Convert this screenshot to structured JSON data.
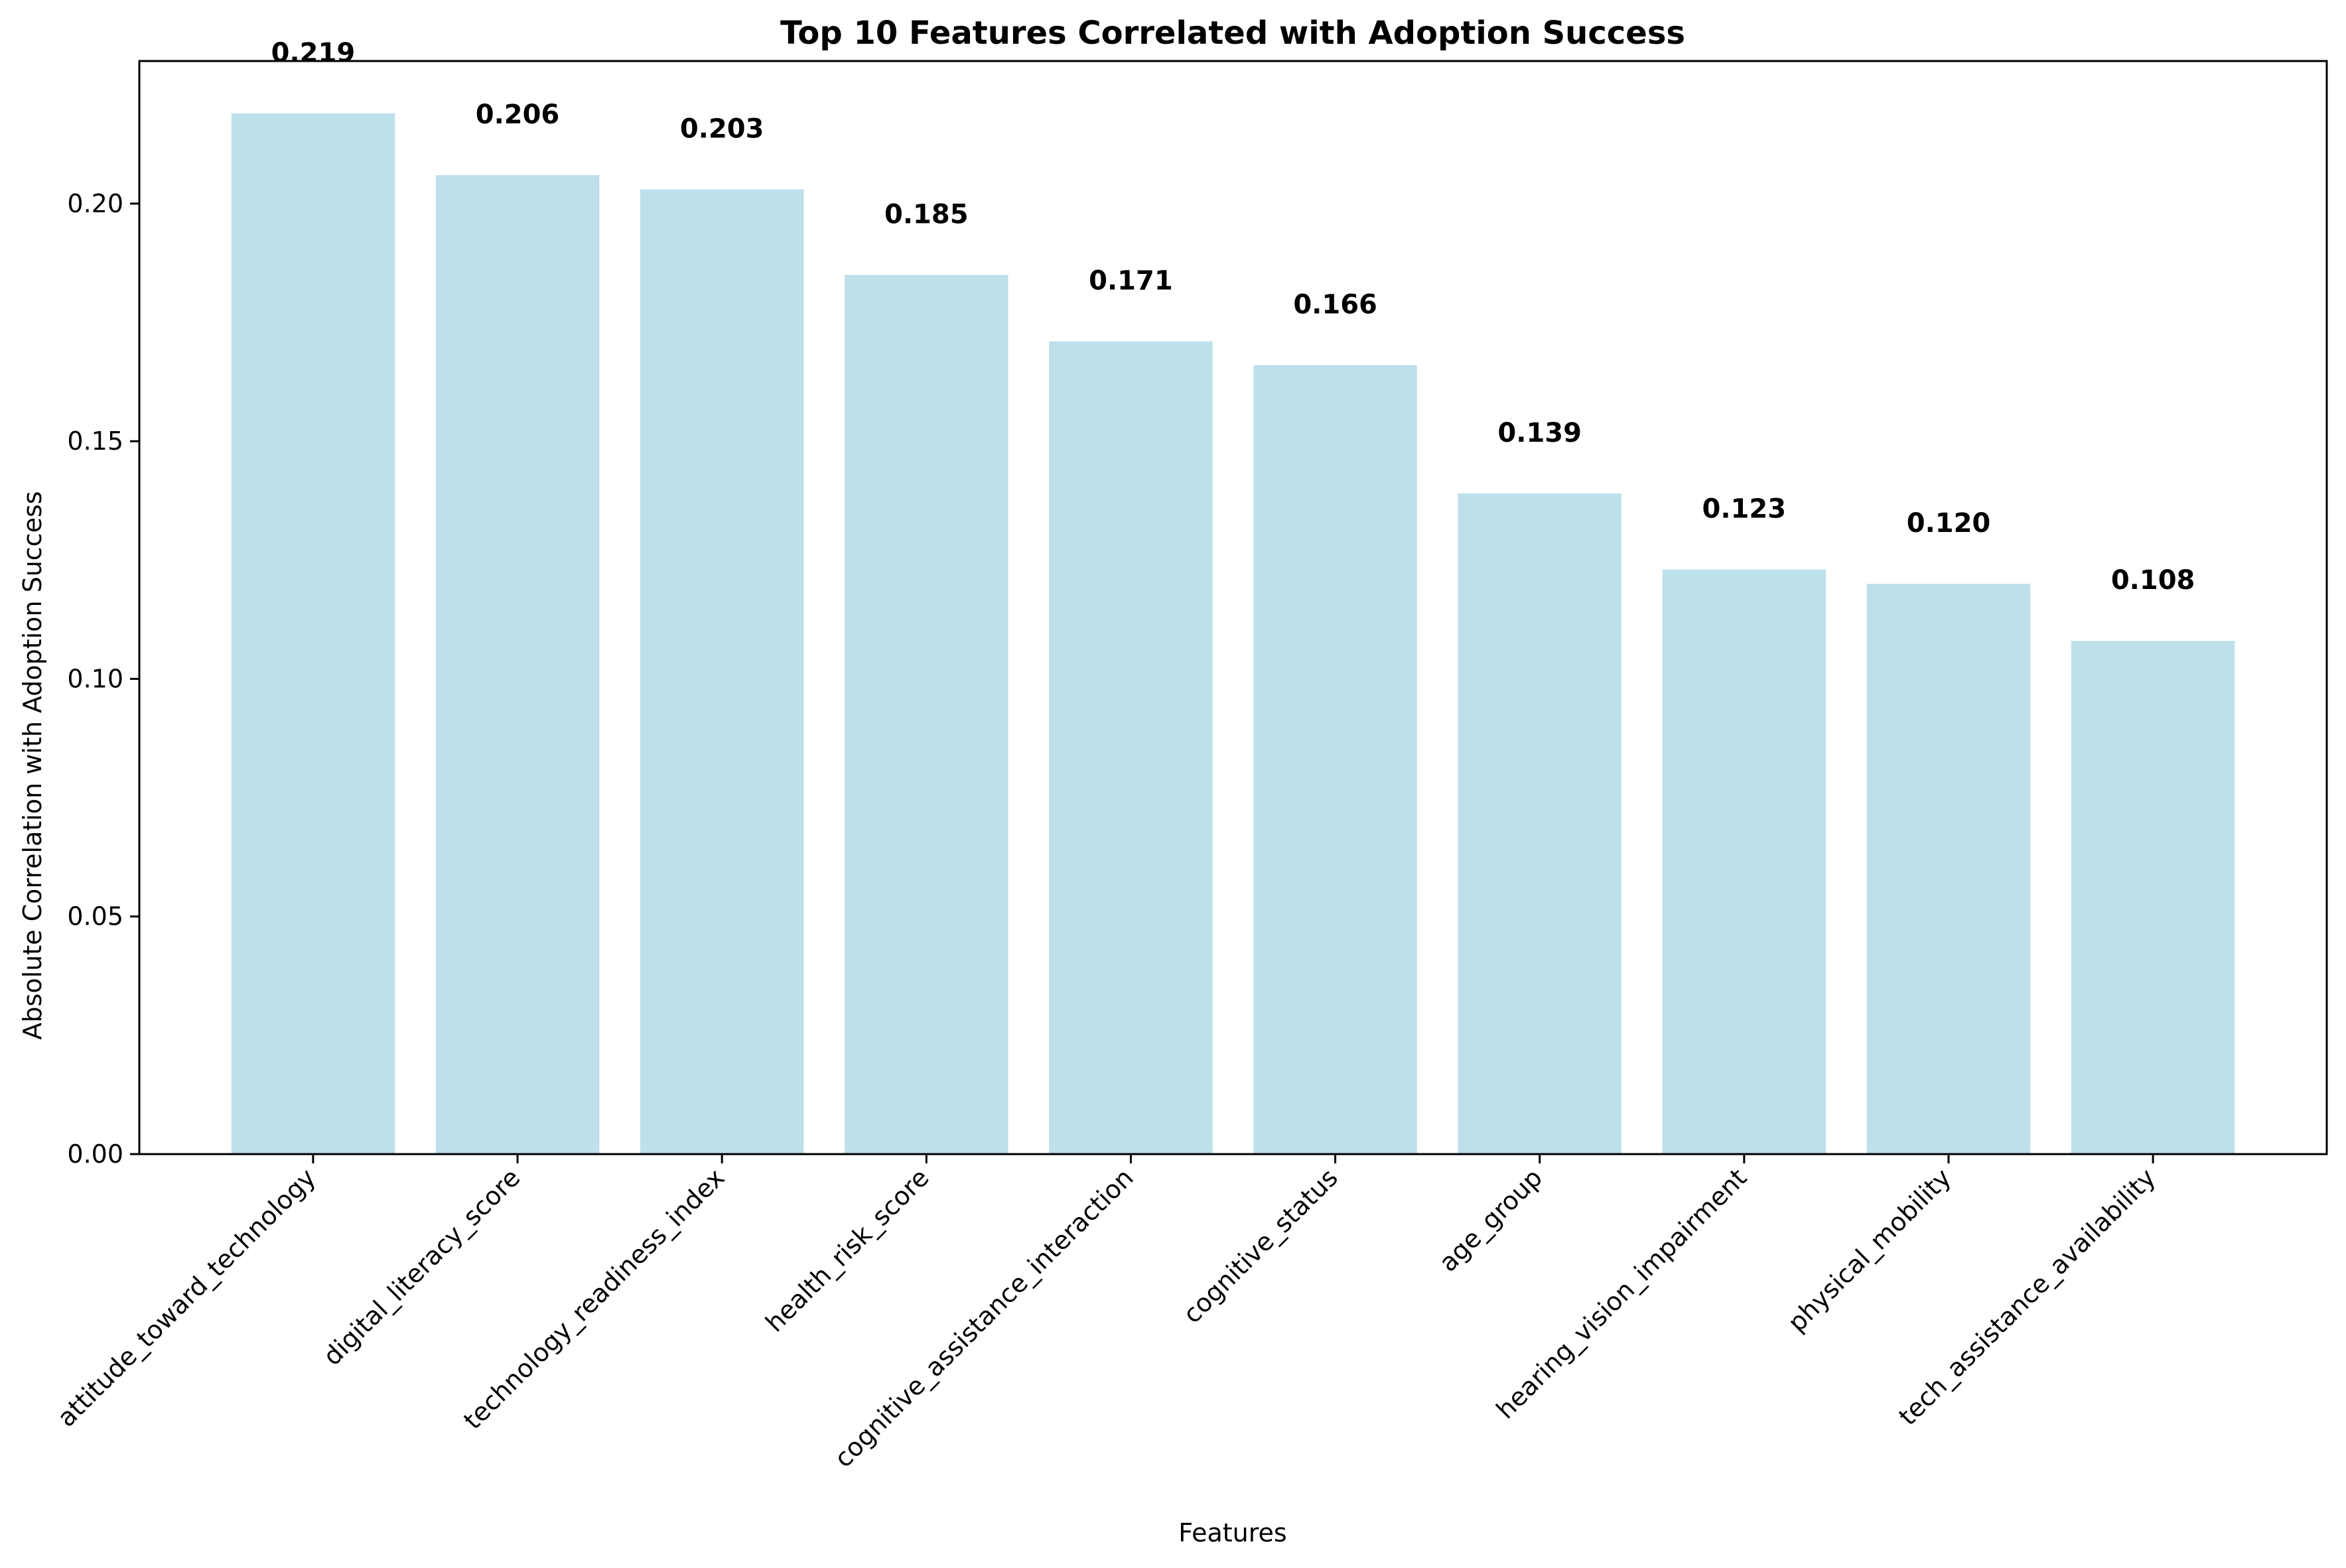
{
  "chart_data": {
    "type": "bar",
    "title": "Top 10 Features Correlated with Adoption Success",
    "xlabel": "Features",
    "ylabel": "Absolute Correlation with Adoption Success",
    "categories": [
      "attitude_toward_technology",
      "digital_literacy_score",
      "technology_readiness_index",
      "health_risk_score",
      "cognitive_assistance_interaction",
      "cognitive_status",
      "age_group",
      "hearing_vision_impairment",
      "physical_mobility",
      "tech_assistance_availability"
    ],
    "values": [
      0.219,
      0.206,
      0.203,
      0.185,
      0.171,
      0.166,
      0.139,
      0.123,
      0.12,
      0.108
    ],
    "value_labels": [
      "0.219",
      "0.206",
      "0.203",
      "0.185",
      "0.171",
      "0.166",
      "0.139",
      "0.123",
      "0.120",
      "0.108"
    ],
    "ylim": [
      0,
      0.23
    ],
    "yticks": [
      0.0,
      0.05,
      0.1,
      0.15,
      0.2
    ],
    "ytick_labels": [
      "0.00",
      "0.05",
      "0.10",
      "0.15",
      "0.20"
    ],
    "grid": false,
    "bar_color": "#add8e6",
    "bar_opacity": 0.8
  }
}
